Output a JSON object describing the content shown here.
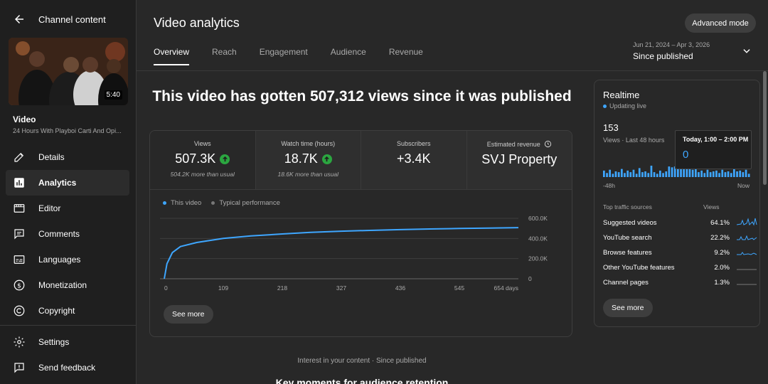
{
  "sidebar": {
    "back_title": "Channel content",
    "thumbnail_duration": "5:40",
    "video_label": "Video",
    "video_title": "24 Hours With Playboi Carti And Opi...",
    "items": [
      {
        "label": "Details",
        "icon": "pencil-icon"
      },
      {
        "label": "Analytics",
        "icon": "analytics-icon",
        "active": true
      },
      {
        "label": "Editor",
        "icon": "editor-icon"
      },
      {
        "label": "Comments",
        "icon": "comments-icon"
      },
      {
        "label": "Languages",
        "icon": "languages-icon"
      },
      {
        "label": "Monetization",
        "icon": "dollar-icon"
      },
      {
        "label": "Copyright",
        "icon": "copyright-icon"
      }
    ],
    "bottom_items": [
      {
        "label": "Settings",
        "icon": "gear-icon"
      },
      {
        "label": "Send feedback",
        "icon": "feedback-icon"
      }
    ]
  },
  "header": {
    "title": "Video analytics",
    "advanced_mode": "Advanced mode",
    "tabs": [
      "Overview",
      "Reach",
      "Engagement",
      "Audience",
      "Revenue"
    ],
    "date_range": "Jun 21, 2024 – Apr 3, 2026",
    "date_preset": "Since published"
  },
  "headline": "This video has gotten 507,312 views since it was published",
  "metrics": [
    {
      "label": "Views",
      "value": "507.3K",
      "sub": "504.2K more than usual",
      "up": true
    },
    {
      "label": "Watch time (hours)",
      "value": "18.7K",
      "sub": "18.6K more than usual",
      "up": true
    },
    {
      "label": "Subscribers",
      "value": "+3.4K",
      "sub": "",
      "up": false
    },
    {
      "label": "Estimated revenue",
      "value": "SVJ Property",
      "sub": "",
      "up": false
    }
  ],
  "legend": {
    "this_video": "This video",
    "typical": "Typical performance"
  },
  "see_more": "See more",
  "chart_data": {
    "type": "line",
    "series": [
      {
        "name": "This video",
        "x": [
          0,
          5,
          15,
          30,
          60,
          109,
          160,
          218,
          270,
          327,
          380,
          436,
          490,
          545,
          600,
          654
        ],
        "y": [
          0,
          150000,
          260000,
          320000,
          360000,
          400000,
          425000,
          445000,
          460000,
          472000,
          480000,
          488000,
          494000,
          499000,
          503000,
          507312
        ]
      }
    ],
    "x_ticks": [
      "0",
      "109",
      "218",
      "327",
      "436",
      "545",
      "654 days"
    ],
    "y_ticks": [
      "0",
      "200.0K",
      "400.0K",
      "600.0K"
    ],
    "xlim": [
      0,
      654
    ],
    "ylim": [
      0,
      600000
    ]
  },
  "realtime": {
    "title": "Realtime",
    "live": "Updating live",
    "views": "153",
    "views_sub": "Views · Last 48 hours",
    "tooltip_title": "Today, 1:00 – 2:00 PM",
    "tooltip_value": "0",
    "axis_left": "-48h",
    "axis_right": "Now",
    "bars": [
      8,
      5,
      9,
      4,
      7,
      6,
      10,
      5,
      8,
      6,
      9,
      4,
      11,
      6,
      7,
      5,
      14,
      6,
      4,
      8,
      5,
      7,
      13,
      12,
      13,
      12,
      11,
      12,
      10,
      11,
      9,
      12,
      6,
      8,
      5,
      9,
      6,
      7,
      8,
      5,
      9,
      6,
      7,
      5,
      10,
      7,
      8,
      6,
      9,
      4
    ],
    "sources_header": "Top traffic sources",
    "views_header": "Views",
    "sources": [
      {
        "name": "Suggested videos",
        "pct": "64.1%"
      },
      {
        "name": "YouTube search",
        "pct": "22.2%"
      },
      {
        "name": "Browse features",
        "pct": "9.2%"
      },
      {
        "name": "Other YouTube features",
        "pct": "2.0%"
      },
      {
        "name": "Channel pages",
        "pct": "1.3%"
      }
    ],
    "see_more": "See more"
  },
  "bottom": {
    "subtitle": "Interest in your content · Since published",
    "heading": "Key moments for audience retention"
  }
}
